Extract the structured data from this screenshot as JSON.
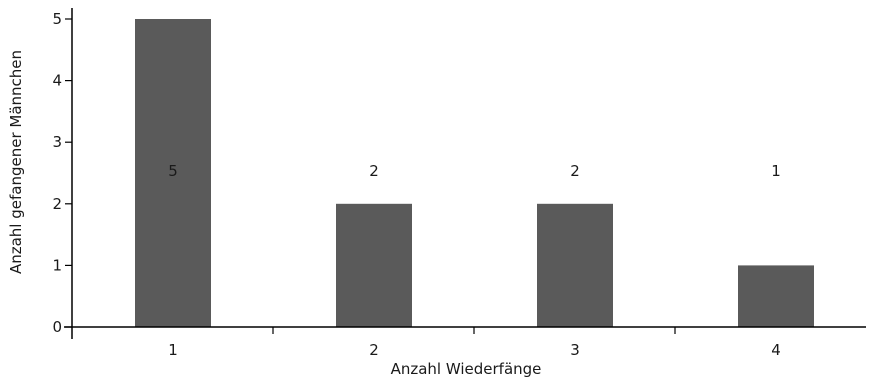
{
  "chart_data": {
    "type": "bar",
    "title": "",
    "xlabel": "Anzahl Wiederfänge",
    "ylabel": "Anzahl gefangener Männchen",
    "categories": [
      "1",
      "2",
      "3",
      "4"
    ],
    "values": [
      5,
      2,
      2,
      1
    ],
    "data_labels": [
      "5",
      "2",
      "2",
      "1"
    ],
    "ylim": [
      0,
      5
    ],
    "yticks": [
      "0",
      "1",
      "2",
      "3",
      "4",
      "5"
    ],
    "grid": false,
    "legend": "none",
    "bar_color": "#5a5a5a"
  }
}
